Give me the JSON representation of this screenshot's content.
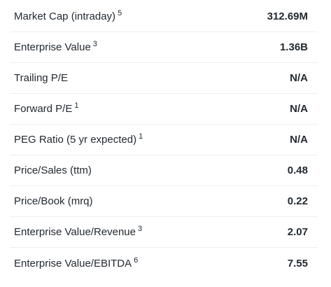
{
  "valuation_measures": {
    "rows": [
      {
        "label": "Market Cap (intraday)",
        "footnote": "5",
        "value": "312.69M"
      },
      {
        "label": "Enterprise Value",
        "footnote": "3",
        "value": "1.36B"
      },
      {
        "label": "Trailing P/E",
        "footnote": "",
        "value": "N/A"
      },
      {
        "label": "Forward P/E",
        "footnote": "1",
        "value": "N/A"
      },
      {
        "label": "PEG Ratio (5 yr expected)",
        "footnote": "1",
        "value": "N/A"
      },
      {
        "label": "Price/Sales (ttm)",
        "footnote": "",
        "value": "0.48"
      },
      {
        "label": "Price/Book (mrq)",
        "footnote": "",
        "value": "0.22"
      },
      {
        "label": "Enterprise Value/Revenue",
        "footnote": "3",
        "value": "2.07"
      },
      {
        "label": "Enterprise Value/EBITDA",
        "footnote": "6",
        "value": "7.55"
      }
    ]
  }
}
